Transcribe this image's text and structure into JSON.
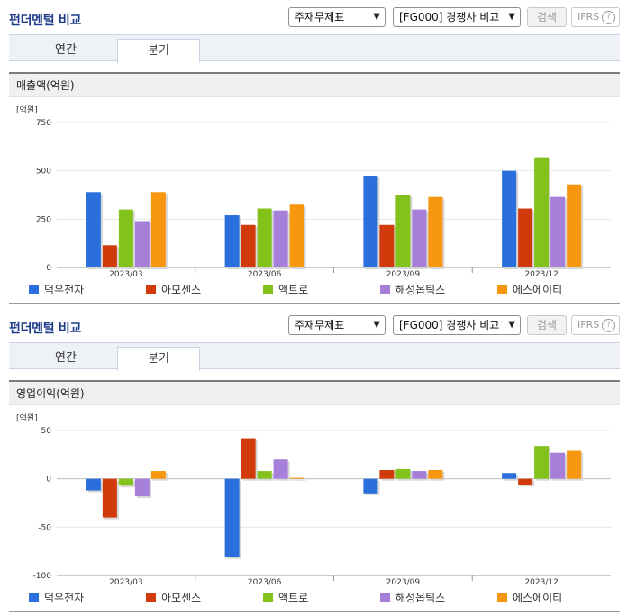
{
  "panels": [
    {
      "title": "펀더멘털 비교",
      "select1": "주재무제표",
      "select2": "[FG000] 경쟁사 비교",
      "search_label": "검색",
      "ifrs_label": "IFRS",
      "help_glyph": "?",
      "tabs": [
        "연간",
        "분기"
      ],
      "active_tab": "분기",
      "chart_header": "매출액(억원)"
    },
    {
      "title": "펀더멘털 비교",
      "select1": "주재무제표",
      "select2": "[FG000] 경쟁사 비교",
      "search_label": "검색",
      "ifrs_label": "IFRS",
      "help_glyph": "?",
      "tabs": [
        "연간",
        "분기"
      ],
      "active_tab": "분기",
      "chart_header": "영업이익(억원)"
    }
  ],
  "colors": {
    "series": [
      "#2a6fdb",
      "#d13b0c",
      "#82c21b",
      "#a67fd9",
      "#f7960f"
    ],
    "title": "#1f3d8a"
  },
  "icons": {
    "dropdown": "chevron-down-icon",
    "help": "question-circle-icon",
    "legend": "square-swatch-icon"
  },
  "chart_data": [
    {
      "type": "bar",
      "title": "매출액(억원)",
      "unit_label": "[억원]",
      "categories": [
        "2023/03",
        "2023/06",
        "2023/09",
        "2023/12"
      ],
      "ylim": [
        0,
        750
      ],
      "yticks": [
        0,
        250,
        500,
        750
      ],
      "grid": true,
      "legend_placement": "bottom",
      "series": [
        {
          "name": "덕우전자",
          "values": [
            390,
            270,
            475,
            500
          ]
        },
        {
          "name": "아모센스",
          "values": [
            115,
            220,
            220,
            305
          ]
        },
        {
          "name": "액트로",
          "values": [
            300,
            305,
            375,
            570
          ]
        },
        {
          "name": "해성옵틱스",
          "values": [
            240,
            295,
            300,
            365
          ]
        },
        {
          "name": "에스에이티",
          "values": [
            390,
            325,
            365,
            430
          ]
        }
      ]
    },
    {
      "type": "bar",
      "title": "영업이익(억원)",
      "unit_label": "[억원]",
      "categories": [
        "2023/03",
        "2023/06",
        "2023/09",
        "2023/12"
      ],
      "ylim": [
        -100,
        50
      ],
      "yticks": [
        -100,
        -50,
        0,
        50
      ],
      "grid": true,
      "legend_placement": "bottom",
      "series": [
        {
          "name": "덕우전자",
          "values": [
            -12,
            -81,
            -15,
            6
          ]
        },
        {
          "name": "아모센스",
          "values": [
            -40,
            42,
            9,
            -6
          ]
        },
        {
          "name": "액트로",
          "values": [
            -7,
            8,
            10,
            34
          ]
        },
        {
          "name": "해성옵틱스",
          "values": [
            -18,
            20,
            8,
            27
          ]
        },
        {
          "name": "에스에이티",
          "values": [
            8,
            1,
            9,
            29
          ]
        }
      ]
    }
  ]
}
